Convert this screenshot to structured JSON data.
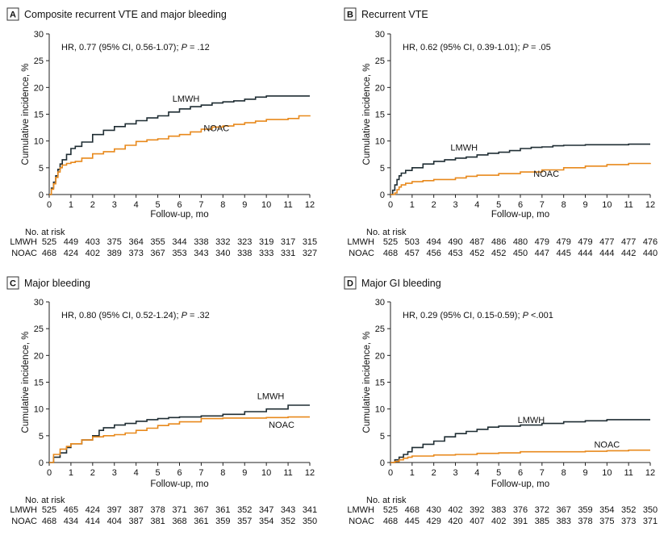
{
  "colors": {
    "lmwh": "#1f2d33",
    "noac": "#e8891c",
    "axis": "#222222"
  },
  "risk_table_title": "No. at risk",
  "chart_data": [
    {
      "type": "line",
      "panel_letter": "A",
      "title": "Composite recurrent VTE and major bleeding",
      "xlabel": "Follow-up, mo",
      "ylabel": "Cumulative incidence, %",
      "xlim": [
        0,
        12
      ],
      "ylim": [
        0,
        30
      ],
      "x_ticks": [
        0,
        1,
        2,
        3,
        4,
        5,
        6,
        7,
        8,
        9,
        10,
        11,
        12
      ],
      "y_ticks": [
        0,
        5,
        10,
        15,
        20,
        25,
        30
      ],
      "annotation": {
        "prefix": "HR, 0.77 (95% CI, 0.56-1.07); ",
        "p_label": "P",
        "p_value": " = .12"
      },
      "series": [
        {
          "name": "LMWH",
          "label_at": [
            6.3,
            17.3
          ],
          "x": [
            0,
            0.1,
            0.2,
            0.3,
            0.4,
            0.5,
            0.6,
            0.8,
            1.0,
            1.2,
            1.5,
            2.0,
            2.5,
            3.0,
            3.5,
            4.0,
            4.5,
            5.0,
            5.5,
            6.0,
            6.5,
            7.0,
            7.5,
            8.0,
            8.5,
            9.0,
            9.5,
            10.0,
            11.0,
            12.0
          ],
          "y": [
            0,
            1.2,
            2.3,
            3.5,
            4.7,
            5.7,
            6.5,
            7.5,
            8.6,
            9.0,
            9.8,
            11.2,
            12.0,
            12.7,
            13.2,
            13.8,
            14.3,
            14.7,
            15.4,
            16.0,
            16.4,
            16.7,
            17.1,
            17.3,
            17.5,
            17.8,
            18.2,
            18.4,
            18.4,
            18.4
          ]
        },
        {
          "name": "NOAC",
          "label_at": [
            7.7,
            11.8
          ],
          "x": [
            0,
            0.1,
            0.2,
            0.3,
            0.4,
            0.5,
            0.6,
            0.8,
            1.0,
            1.2,
            1.5,
            2.0,
            2.5,
            3.0,
            3.5,
            4.0,
            4.5,
            5.0,
            5.5,
            6.0,
            6.5,
            7.0,
            7.5,
            8.0,
            8.5,
            9.0,
            9.5,
            10.0,
            11.0,
            11.5,
            12.0
          ],
          "y": [
            0,
            1.0,
            2.0,
            3.2,
            4.2,
            5.0,
            5.5,
            5.8,
            6.0,
            6.2,
            6.8,
            7.6,
            8.0,
            8.5,
            9.2,
            9.9,
            10.2,
            10.4,
            10.9,
            11.2,
            11.7,
            12.2,
            12.6,
            12.8,
            13.1,
            13.4,
            13.7,
            14.0,
            14.2,
            14.7,
            14.8
          ]
        }
      ],
      "risk_table": {
        "LMWH": [
          525,
          449,
          403,
          375,
          364,
          355,
          344,
          338,
          332,
          323,
          319,
          317,
          315
        ],
        "NOAC": [
          468,
          424,
          402,
          389,
          373,
          367,
          353,
          343,
          340,
          338,
          333,
          331,
          327
        ]
      }
    },
    {
      "type": "line",
      "panel_letter": "B",
      "title": "Recurrent VTE",
      "xlabel": "Follow-up, mo",
      "ylabel": "Cumulative incidence, %",
      "xlim": [
        0,
        12
      ],
      "ylim": [
        0,
        30
      ],
      "x_ticks": [
        0,
        1,
        2,
        3,
        4,
        5,
        6,
        7,
        8,
        9,
        10,
        11,
        12
      ],
      "y_ticks": [
        0,
        5,
        10,
        15,
        20,
        25,
        30
      ],
      "annotation": {
        "prefix": "HR, 0.62 (95% CI, 0.39-1.01); ",
        "p_label": "P",
        "p_value": " = .05"
      },
      "series": [
        {
          "name": "LMWH",
          "label_at": [
            3.4,
            8.2
          ],
          "x": [
            0,
            0.1,
            0.2,
            0.3,
            0.4,
            0.5,
            0.7,
            1.0,
            1.5,
            2.0,
            2.5,
            3.0,
            3.5,
            4.0,
            4.5,
            5.0,
            5.5,
            6.0,
            6.5,
            7.0,
            7.5,
            8.0,
            9.0,
            10.0,
            11.0,
            12.0
          ],
          "y": [
            0,
            0.8,
            1.8,
            2.8,
            3.5,
            4.0,
            4.5,
            5.0,
            5.7,
            6.2,
            6.5,
            6.8,
            7.0,
            7.4,
            7.7,
            7.9,
            8.2,
            8.6,
            8.8,
            8.9,
            9.1,
            9.2,
            9.3,
            9.3,
            9.4,
            9.4
          ]
        },
        {
          "name": "NOAC",
          "label_at": [
            7.2,
            3.3
          ],
          "x": [
            0,
            0.2,
            0.3,
            0.4,
            0.5,
            0.7,
            1.0,
            1.5,
            2.0,
            3.0,
            3.5,
            4.0,
            5.0,
            6.0,
            7.0,
            8.0,
            9.0,
            10.0,
            11.0,
            12.0
          ],
          "y": [
            0,
            0.3,
            0.9,
            1.4,
            1.8,
            2.1,
            2.4,
            2.6,
            2.8,
            3.1,
            3.4,
            3.6,
            3.9,
            4.2,
            4.6,
            5.0,
            5.3,
            5.6,
            5.8,
            5.9
          ]
        }
      ],
      "risk_table": {
        "LMWH": [
          525,
          503,
          494,
          490,
          487,
          486,
          480,
          479,
          479,
          479,
          477,
          477,
          476
        ],
        "NOAC": [
          468,
          457,
          456,
          453,
          452,
          452,
          450,
          447,
          445,
          444,
          444,
          442,
          440
        ]
      }
    },
    {
      "type": "line",
      "panel_letter": "C",
      "title": "Major bleeding",
      "xlabel": "Follow-up, mo",
      "ylabel": "Cumulative incidence, %",
      "xlim": [
        0,
        12
      ],
      "ylim": [
        0,
        30
      ],
      "x_ticks": [
        0,
        1,
        2,
        3,
        4,
        5,
        6,
        7,
        8,
        9,
        10,
        11,
        12
      ],
      "y_ticks": [
        0,
        5,
        10,
        15,
        20,
        25,
        30
      ],
      "annotation": {
        "prefix": "HR, 0.80 (95% CI, 0.52-1.24); ",
        "p_label": "P",
        "p_value": " = .32"
      },
      "series": [
        {
          "name": "LMWH",
          "label_at": [
            10.2,
            11.8
          ],
          "x": [
            0,
            0.2,
            0.5,
            0.8,
            1.0,
            1.5,
            2.0,
            2.3,
            2.5,
            3.0,
            3.5,
            4.0,
            4.5,
            5.0,
            5.5,
            6.0,
            7.0,
            8.0,
            9.0,
            10.0,
            11.0,
            12.0
          ],
          "y": [
            0,
            1.0,
            1.8,
            2.8,
            3.5,
            4.2,
            5.0,
            6.0,
            6.5,
            7.0,
            7.3,
            7.7,
            8.0,
            8.2,
            8.4,
            8.5,
            8.7,
            9.0,
            9.5,
            10.0,
            10.7,
            10.7
          ]
        },
        {
          "name": "NOAC",
          "label_at": [
            10.7,
            6.5
          ],
          "x": [
            0,
            0.2,
            0.5,
            0.8,
            1.0,
            1.5,
            2.0,
            2.5,
            3.0,
            3.5,
            4.0,
            4.5,
            5.0,
            5.5,
            6.0,
            7.0,
            8.0,
            9.0,
            10.0,
            11.0,
            12.0
          ],
          "y": [
            0,
            1.5,
            2.5,
            3.0,
            3.5,
            4.2,
            4.8,
            5.0,
            5.2,
            5.5,
            6.0,
            6.4,
            6.9,
            7.2,
            7.6,
            8.2,
            8.3,
            8.3,
            8.4,
            8.5,
            8.5
          ]
        }
      ],
      "risk_table": {
        "LMWH": [
          525,
          465,
          424,
          397,
          387,
          378,
          371,
          367,
          361,
          352,
          347,
          343,
          341
        ],
        "NOAC": [
          468,
          434,
          414,
          404,
          387,
          381,
          368,
          361,
          359,
          357,
          354,
          352,
          350
        ]
      }
    },
    {
      "type": "line",
      "panel_letter": "D",
      "title": "Major GI bleeding",
      "xlabel": "Follow-up, mo",
      "ylabel": "Cumulative incidence, %",
      "xlim": [
        0,
        12
      ],
      "ylim": [
        0,
        30
      ],
      "x_ticks": [
        0,
        1,
        2,
        3,
        4,
        5,
        6,
        7,
        8,
        9,
        10,
        11,
        12
      ],
      "y_ticks": [
        0,
        5,
        10,
        15,
        20,
        25,
        30
      ],
      "annotation": {
        "prefix": "HR, 0.29 (95% CI, 0.15-0.59); ",
        "p_label": "P",
        "p_value": " <.001"
      },
      "series": [
        {
          "name": "LMWH",
          "label_at": [
            6.5,
            7.4
          ],
          "x": [
            0,
            0.2,
            0.4,
            0.6,
            0.8,
            1.0,
            1.5,
            2.0,
            2.5,
            3.0,
            3.5,
            4.0,
            4.5,
            5.0,
            6.0,
            7.0,
            8.0,
            9.0,
            10.0,
            11.0,
            12.0
          ],
          "y": [
            0,
            0.5,
            1.0,
            1.5,
            2.0,
            2.8,
            3.4,
            4.0,
            4.8,
            5.4,
            5.8,
            6.2,
            6.6,
            6.8,
            7.0,
            7.3,
            7.6,
            7.8,
            8.0,
            8.0,
            8.0
          ]
        },
        {
          "name": "NOAC",
          "label_at": [
            10.0,
            2.8
          ],
          "x": [
            0,
            0.2,
            0.4,
            0.6,
            0.8,
            1.0,
            2.0,
            3.0,
            4.0,
            5.0,
            6.0,
            7.0,
            8.0,
            9.0,
            10.0,
            11.0,
            12.0
          ],
          "y": [
            0,
            0.2,
            0.5,
            0.8,
            1.0,
            1.2,
            1.4,
            1.5,
            1.7,
            1.8,
            2.0,
            2.0,
            2.0,
            2.1,
            2.2,
            2.3,
            2.3
          ]
        }
      ],
      "risk_table": {
        "LMWH": [
          525,
          468,
          430,
          402,
          392,
          383,
          376,
          372,
          367,
          359,
          354,
          352,
          350
        ],
        "NOAC": [
          468,
          445,
          429,
          420,
          407,
          402,
          391,
          385,
          383,
          378,
          375,
          373,
          371
        ]
      }
    }
  ]
}
